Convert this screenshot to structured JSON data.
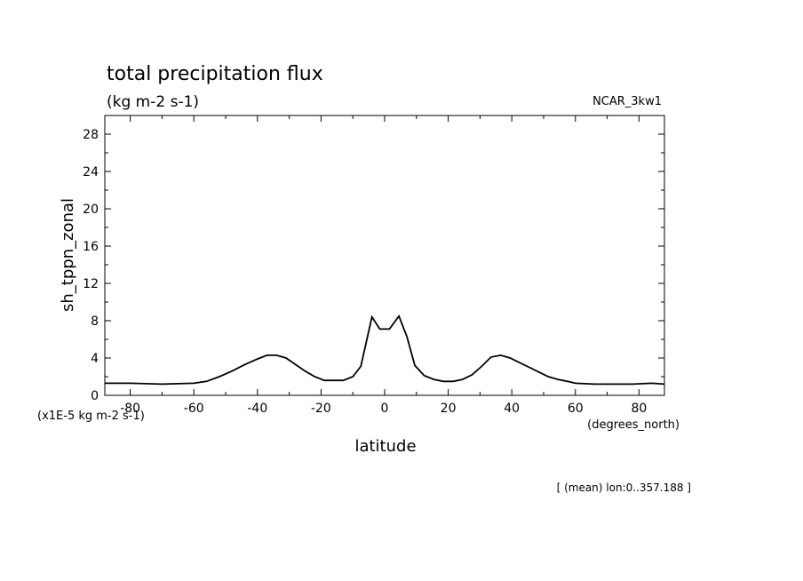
{
  "chart_data": {
    "type": "line",
    "title": "total precipitation flux",
    "units": "(kg m-2 s-1)",
    "dataset": "NCAR_3kw1",
    "ylabel": "sh_tppn_zonal",
    "yscale_note": "(x1E-5 kg m-2 s-1)",
    "xlabel": "latitude",
    "xunits": "(degrees_north)",
    "footnote": "[ (mean) lon:0..357.188 ]",
    "xlim": [
      -88,
      88
    ],
    "ylim": [
      0,
      30
    ],
    "xticks": [
      -80,
      -60,
      -40,
      -20,
      0,
      20,
      40,
      60,
      80
    ],
    "xtick_labels": [
      "-80",
      "-60",
      "-40",
      "-20",
      "0",
      "20",
      "40",
      "60",
      "80"
    ],
    "yticks": [
      0,
      4,
      8,
      12,
      16,
      20,
      24,
      28
    ],
    "ytick_labels": [
      "0",
      "4",
      "8",
      "12",
      "16",
      "20",
      "24",
      "28"
    ],
    "series": [
      {
        "x": [
          -88,
          -80,
          -70,
          -60,
          -56,
          -52,
          -48,
          -44,
          -40,
          -37,
          -34,
          -31,
          -28,
          -25,
          -22,
          -19,
          -16,
          -13,
          -10,
          -7.5,
          -4,
          -1.5,
          1.5,
          4.5,
          7,
          9.5,
          12.5,
          15.5,
          18.5,
          21.5,
          24.5,
          27.5,
          30.5,
          33.5,
          36.5,
          39.5,
          42.5,
          45.5,
          48.5,
          51.5,
          54.5,
          57.5,
          60,
          66,
          72,
          78,
          84,
          88
        ],
        "y": [
          1.3,
          1.3,
          1.2,
          1.3,
          1.5,
          2.0,
          2.6,
          3.3,
          3.9,
          4.3,
          4.3,
          4.0,
          3.3,
          2.6,
          2.0,
          1.6,
          1.6,
          1.6,
          2.0,
          3.1,
          8.4,
          7.1,
          7.1,
          8.5,
          6.3,
          3.2,
          2.1,
          1.7,
          1.5,
          1.5,
          1.7,
          2.2,
          3.1,
          4.1,
          4.3,
          4.0,
          3.5,
          3.0,
          2.5,
          2.0,
          1.7,
          1.5,
          1.3,
          1.2,
          1.2,
          1.2,
          1.3,
          1.2
        ]
      }
    ]
  }
}
